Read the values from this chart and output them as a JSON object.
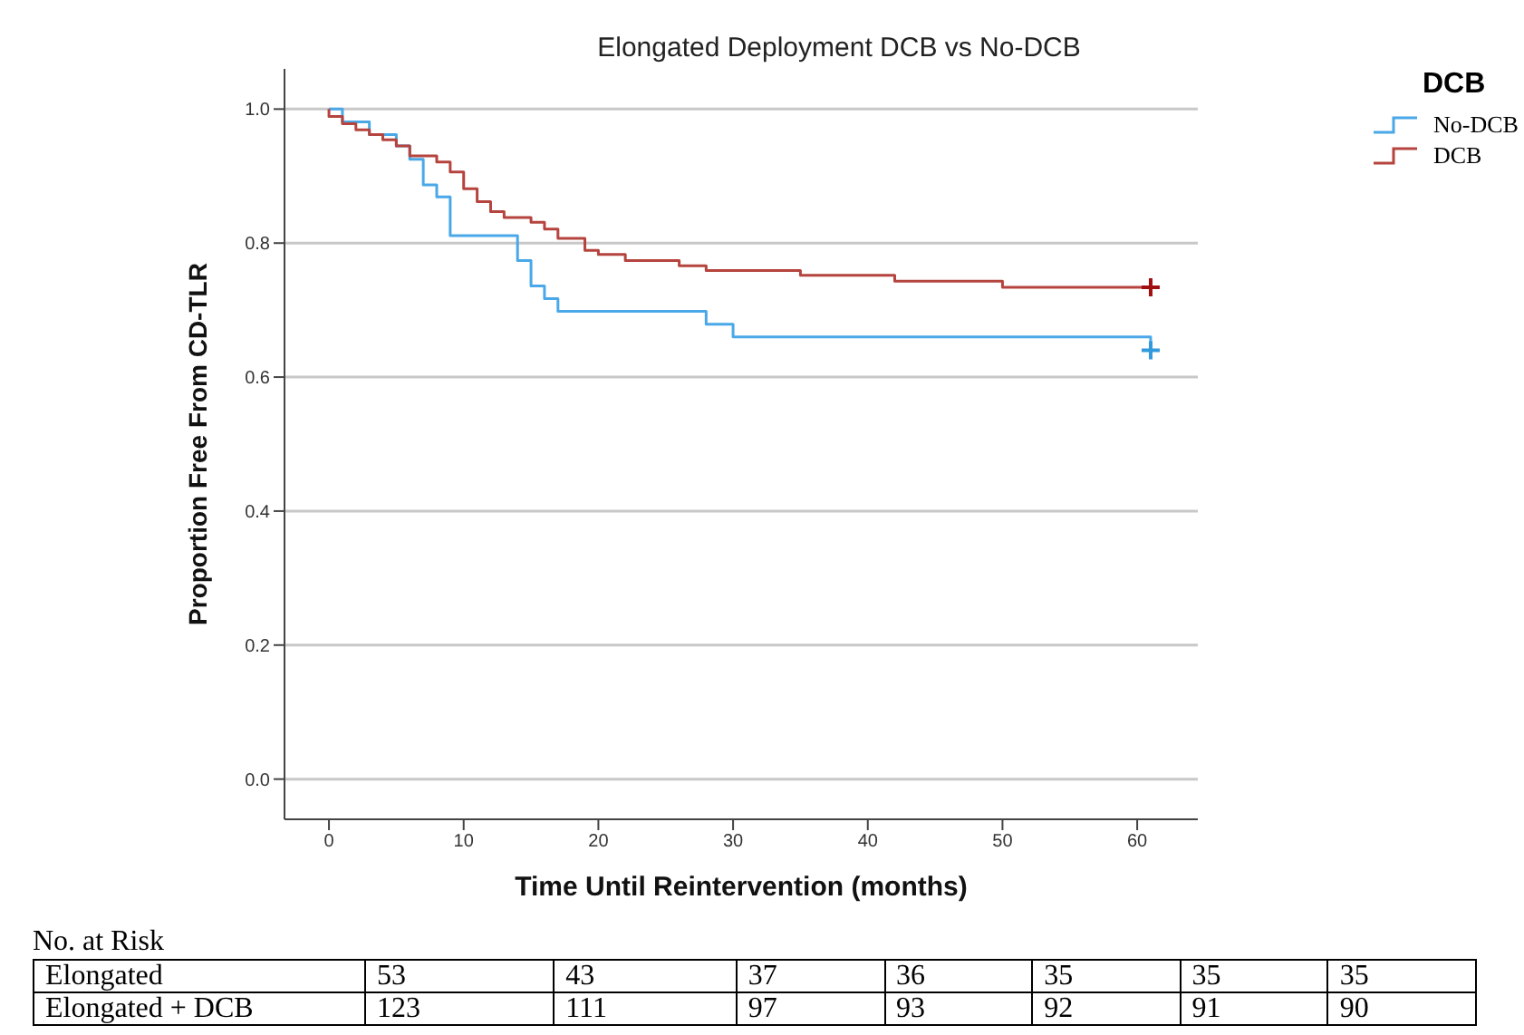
{
  "chart_data": {
    "type": "step",
    "title": "Elongated Deployment DCB vs No-DCB",
    "xlabel": "Time Until Reintervention (months)",
    "ylabel": "Proportion Free From CD-TLR",
    "legend_title": "DCB",
    "xlim": [
      -3.3,
      64.5
    ],
    "xticks": [
      0,
      10,
      20,
      30,
      40,
      50,
      60
    ],
    "ylim": [
      -0.06,
      1.06
    ],
    "yticks": [
      {
        "value": 0,
        "label": "0.0"
      },
      {
        "value": 0.2,
        "label": "0.2"
      },
      {
        "value": 0.4,
        "label": "0.4"
      },
      {
        "value": 0.6,
        "label": "0.6"
      },
      {
        "value": 0.8,
        "label": "0.8"
      },
      {
        "value": 1,
        "label": "1.0"
      }
    ],
    "grid": "y",
    "legend": "top right",
    "series": [
      {
        "name": "No-DCB",
        "color": "#4aa8e8",
        "x": [
          0,
          1,
          3,
          5,
          6,
          7,
          8,
          9,
          14,
          15,
          16,
          17,
          28,
          30,
          61
        ],
        "values": [
          1.0,
          0.981,
          0.962,
          0.945,
          0.925,
          0.887,
          0.869,
          0.811,
          0.774,
          0.736,
          0.717,
          0.698,
          0.679,
          0.66,
          0.64
        ]
      },
      {
        "name": "DCB",
        "color": "#b5443e",
        "x": [
          0,
          0,
          1,
          2,
          3,
          4,
          5,
          6,
          8,
          9,
          10,
          11,
          12,
          13,
          15,
          16,
          17,
          19,
          20,
          22,
          26,
          28,
          35,
          42,
          50,
          61
        ],
        "values": [
          1.0,
          0.989,
          0.978,
          0.969,
          0.962,
          0.954,
          0.945,
          0.93,
          0.921,
          0.906,
          0.881,
          0.862,
          0.847,
          0.838,
          0.831,
          0.821,
          0.807,
          0.789,
          0.783,
          0.774,
          0.766,
          0.759,
          0.752,
          0.743,
          0.734,
          0.734
        ]
      },
      {
        "type": "scatter",
        "color": "#3399dd",
        "marker": "cross",
        "x": [
          61
        ],
        "values": [
          0.64
        ]
      },
      {
        "type": "scatter",
        "color": "#a01010",
        "marker": "cross",
        "x": [
          61
        ],
        "values": [
          0.734
        ]
      }
    ],
    "annotations": [
      "No. at Risk",
      "Elongated",
      "53",
      "43",
      "37",
      "36",
      "35",
      "35",
      "35",
      "Elongated + DCB",
      "123",
      "111",
      "97",
      "93",
      "92",
      "91",
      "90"
    ]
  }
}
